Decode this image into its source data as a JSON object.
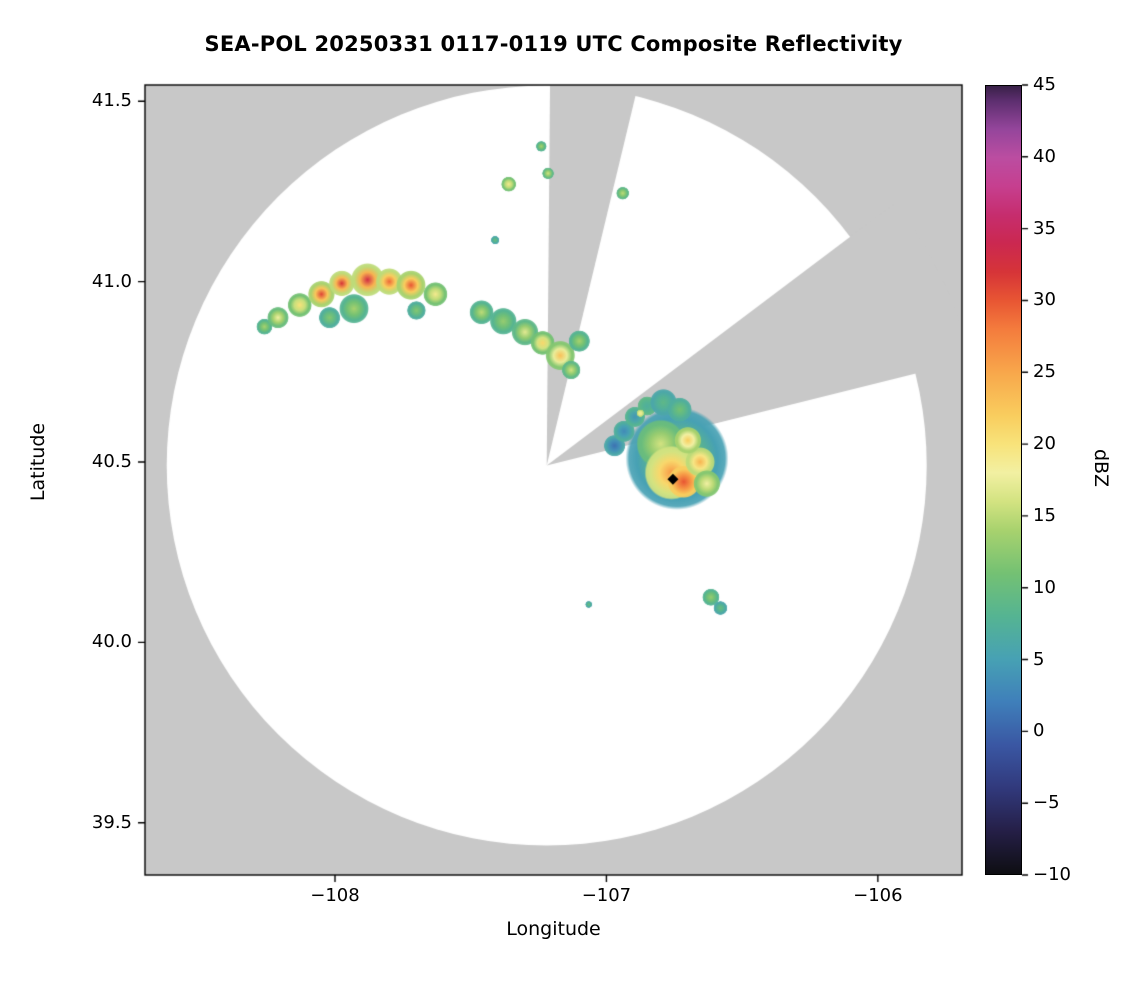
{
  "chart_data": {
    "type": "heatmap",
    "title": "SEA-POL 20250331 0117-0119 UTC Composite Reflectivity",
    "xlabel": "Longitude",
    "ylabel": "Latitude",
    "xlim": [
      -108.7,
      -105.69
    ],
    "ylim": [
      39.355,
      41.545
    ],
    "xticks": [
      {
        "value": -108,
        "label": "−108"
      },
      {
        "value": -107,
        "label": "−107"
      },
      {
        "value": -106,
        "label": "−106"
      }
    ],
    "yticks": [
      {
        "value": 39.5,
        "label": "39.5"
      },
      {
        "value": 40.0,
        "label": "40.0"
      },
      {
        "value": 40.5,
        "label": "40.5"
      },
      {
        "value": 41.0,
        "label": "41.0"
      },
      {
        "value": 41.5,
        "label": "41.5"
      }
    ],
    "colorbar": {
      "label": "dBZ",
      "min": -10,
      "max": 45,
      "ticks": [
        {
          "value": -10,
          "label": "−10"
        },
        {
          "value": -5,
          "label": "−5"
        },
        {
          "value": 0,
          "label": "0"
        },
        {
          "value": 5,
          "label": "5"
        },
        {
          "value": 10,
          "label": "10"
        },
        {
          "value": 15,
          "label": "15"
        },
        {
          "value": 20,
          "label": "20"
        },
        {
          "value": 25,
          "label": "25"
        },
        {
          "value": 30,
          "label": "30"
        },
        {
          "value": 35,
          "label": "35"
        },
        {
          "value": 40,
          "label": "40"
        },
        {
          "value": 45,
          "label": "45"
        }
      ],
      "stops": [
        [
          -10,
          "#0e0e12"
        ],
        [
          -7,
          "#251f47"
        ],
        [
          -4,
          "#31397c"
        ],
        [
          -1,
          "#3a57a3"
        ],
        [
          2,
          "#3f7fba"
        ],
        [
          5,
          "#47a1b4"
        ],
        [
          8,
          "#55b492"
        ],
        [
          11,
          "#74c173"
        ],
        [
          14,
          "#a8d26e"
        ],
        [
          16,
          "#d3e381"
        ],
        [
          18,
          "#f2f0a2"
        ],
        [
          20,
          "#f8e37a"
        ],
        [
          22,
          "#f9cd5e"
        ],
        [
          25,
          "#f8a74b"
        ],
        [
          28,
          "#f47c3d"
        ],
        [
          30,
          "#e85633"
        ],
        [
          32,
          "#d63438"
        ],
        [
          34,
          "#cb2850"
        ],
        [
          36,
          "#c62d6e"
        ],
        [
          38,
          "#c63f8f"
        ],
        [
          40,
          "#bb4da1"
        ],
        [
          42,
          "#94459b"
        ],
        [
          44,
          "#5c2e6e"
        ],
        [
          45,
          "#392048"
        ]
      ]
    },
    "colors": {
      "outside_coverage": "#c8c8c8",
      "inside_coverage": "#ffffff",
      "frame": "#000000"
    },
    "coverage": {
      "center_lon": -107.22,
      "center_lat": 40.49,
      "radius_deg_lon": 1.4
    },
    "blocked_sectors": [
      {
        "az_start": 0.5,
        "az_end": 13.5
      },
      {
        "az_start": 53,
        "az_end": 76
      }
    ],
    "site_marker": {
      "lon": -106.755,
      "lat": 40.452,
      "shape": "diamond",
      "color": "#000000"
    },
    "echo_cells": [
      {
        "lon": -108.26,
        "lat": 40.875,
        "r": 0.03,
        "core": 14,
        "edge": 8
      },
      {
        "lon": -108.21,
        "lat": 40.9,
        "r": 0.04,
        "core": 18,
        "edge": 10
      },
      {
        "lon": -108.13,
        "lat": 40.935,
        "r": 0.045,
        "core": 20,
        "edge": 11
      },
      {
        "lon": -108.05,
        "lat": 40.965,
        "r": 0.05,
        "core": 31,
        "edge": 14
      },
      {
        "lon": -107.975,
        "lat": 40.995,
        "r": 0.048,
        "core": 32,
        "edge": 15
      },
      {
        "lon": -107.88,
        "lat": 41.005,
        "r": 0.062,
        "core": 33,
        "edge": 15
      },
      {
        "lon": -107.8,
        "lat": 41.0,
        "r": 0.05,
        "core": 29,
        "edge": 15
      },
      {
        "lon": -107.72,
        "lat": 40.99,
        "r": 0.055,
        "core": 30,
        "edge": 14
      },
      {
        "lon": -107.63,
        "lat": 40.965,
        "r": 0.045,
        "core": 19,
        "edge": 11
      },
      {
        "lon": -107.93,
        "lat": 40.925,
        "r": 0.055,
        "core": 14,
        "edge": 8
      },
      {
        "lon": -108.02,
        "lat": 40.9,
        "r": 0.04,
        "core": 12,
        "edge": 7
      },
      {
        "lon": -107.7,
        "lat": 40.92,
        "r": 0.035,
        "core": 12,
        "edge": 7
      },
      {
        "lon": -107.46,
        "lat": 40.915,
        "r": 0.045,
        "core": 15,
        "edge": 8
      },
      {
        "lon": -107.38,
        "lat": 40.89,
        "r": 0.05,
        "core": 13,
        "edge": 8
      },
      {
        "lon": -107.3,
        "lat": 40.86,
        "r": 0.05,
        "core": 17,
        "edge": 9
      },
      {
        "lon": -107.235,
        "lat": 40.83,
        "r": 0.045,
        "core": 21,
        "edge": 11
      },
      {
        "lon": -107.17,
        "lat": 40.795,
        "r": 0.055,
        "core": 23,
        "edge": 12
      },
      {
        "lon": -107.1,
        "lat": 40.835,
        "r": 0.04,
        "core": 14,
        "edge": 8
      },
      {
        "lon": -107.13,
        "lat": 40.755,
        "r": 0.035,
        "core": 16,
        "edge": 9
      },
      {
        "lon": -107.36,
        "lat": 41.27,
        "r": 0.028,
        "core": 19,
        "edge": 11
      },
      {
        "lon": -107.24,
        "lat": 41.375,
        "r": 0.02,
        "core": 14,
        "edge": 8
      },
      {
        "lon": -107.215,
        "lat": 41.3,
        "r": 0.022,
        "core": 16,
        "edge": 9
      },
      {
        "lon": -106.94,
        "lat": 41.245,
        "r": 0.024,
        "core": 15,
        "edge": 9
      },
      {
        "lon": -107.41,
        "lat": 41.115,
        "r": 0.016,
        "core": 10,
        "edge": 6
      },
      {
        "lon": -106.74,
        "lat": 40.51,
        "r": 0.19,
        "core": 13,
        "edge": 5
      },
      {
        "lon": -106.8,
        "lat": 40.55,
        "r": 0.09,
        "core": 16,
        "edge": 10
      },
      {
        "lon": -106.76,
        "lat": 40.47,
        "r": 0.1,
        "core": 26,
        "edge": 16
      },
      {
        "lon": -106.715,
        "lat": 40.445,
        "r": 0.06,
        "core": 30,
        "edge": 22
      },
      {
        "lon": -106.655,
        "lat": 40.5,
        "r": 0.055,
        "core": 24,
        "edge": 15
      },
      {
        "lon": -106.63,
        "lat": 40.44,
        "r": 0.05,
        "core": 18,
        "edge": 12
      },
      {
        "lon": -106.7,
        "lat": 40.56,
        "r": 0.05,
        "core": 22,
        "edge": 14
      },
      {
        "lon": -106.97,
        "lat": 40.545,
        "r": 0.04,
        "core": 1,
        "edge": 6
      },
      {
        "lon": -106.935,
        "lat": 40.585,
        "r": 0.04,
        "core": 3,
        "edge": 7
      },
      {
        "lon": -106.895,
        "lat": 40.625,
        "r": 0.038,
        "core": 4,
        "edge": 8
      },
      {
        "lon": -106.85,
        "lat": 40.655,
        "r": 0.036,
        "core": 7,
        "edge": 9
      },
      {
        "lon": -106.79,
        "lat": 40.665,
        "r": 0.05,
        "core": 9,
        "edge": 6
      },
      {
        "lon": -106.73,
        "lat": 40.645,
        "r": 0.045,
        "core": 11,
        "edge": 7
      },
      {
        "lon": -106.875,
        "lat": 40.635,
        "r": 0.014,
        "core": 19,
        "edge": 15
      },
      {
        "lon": -106.615,
        "lat": 40.125,
        "r": 0.032,
        "core": 13,
        "edge": 8
      },
      {
        "lon": -106.58,
        "lat": 40.095,
        "r": 0.026,
        "core": 10,
        "edge": 6
      },
      {
        "lon": -107.065,
        "lat": 40.105,
        "r": 0.013,
        "core": 10,
        "edge": 6
      }
    ]
  }
}
